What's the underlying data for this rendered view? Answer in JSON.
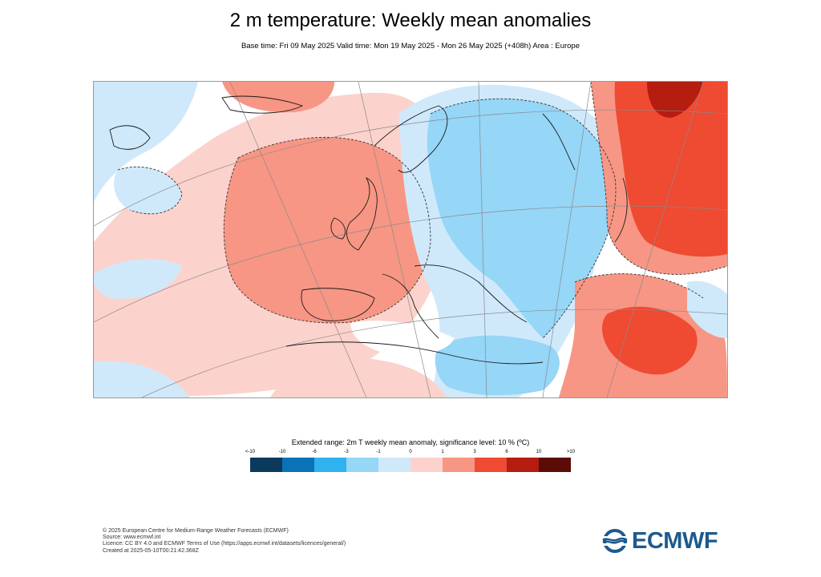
{
  "header": {
    "title": "2 m temperature: Weekly mean anomalies",
    "subtitle": "Base time: Fri 09 May 2025 Valid time: Mon 19 May 2025 - Mon 26 May 2025 (+408h) Area : Europe"
  },
  "map": {
    "region": "Europe",
    "projection": "polar stereographic",
    "gridlines": true,
    "coastlines": true,
    "significance_contours": "dashed"
  },
  "legend": {
    "title": "Extended range: 2m T weekly mean anomaly, significance level: 10 % (ºC)",
    "ticks": [
      "<-10",
      "-10",
      "-6",
      "-3",
      "-1",
      "0",
      "1",
      "3",
      "6",
      "10",
      ">10"
    ],
    "colors": [
      "#0b3a5c",
      "#0a72b6",
      "#2fb2ee",
      "#96d6f7",
      "#cfe9fb",
      "#fcd2cc",
      "#f79684",
      "#ef4a32",
      "#b41d0f",
      "#5b0c06"
    ]
  },
  "footer": {
    "line1": "© 2025 European Centre for Medium-Range Weather Forecasts (ECMWF)",
    "line2": "Source: www.ecmwf.int",
    "line3": "Licence: CC BY 4.0 and ECMWF Terms of Use (https://apps.ecmwf.int/datasets/licences/general/)",
    "line4": "Created at 2025-05-10T00:21:42.368Z"
  },
  "logo": {
    "text": "ECMWF",
    "color": "#1d5a8e"
  }
}
